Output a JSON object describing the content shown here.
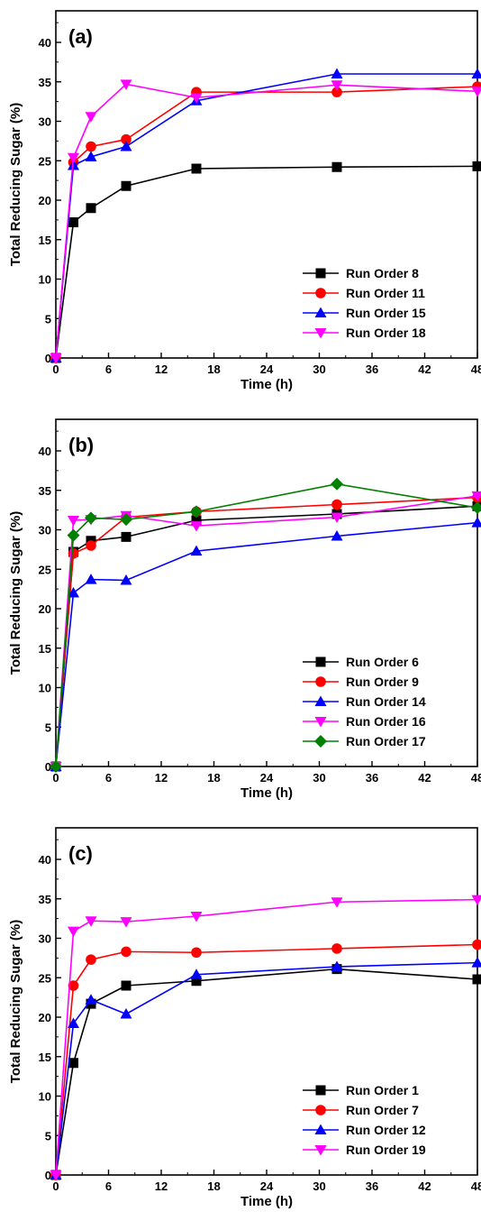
{
  "chart_data": [
    {
      "type": "line",
      "panel_label": "(a)",
      "xlabel": "Time (h)",
      "ylabel": "Total Reducing Sugar (%)",
      "xlim": [
        0,
        48
      ],
      "ylim": [
        0,
        44
      ],
      "xticks": [
        0,
        6,
        12,
        18,
        24,
        30,
        36,
        42,
        48
      ],
      "yticks": [
        0,
        5,
        10,
        15,
        20,
        25,
        30,
        35,
        40
      ],
      "legend_position": "bottom-right",
      "series": [
        {
          "name": "Run Order 8",
          "color": "#000000",
          "marker": "square",
          "x": [
            0,
            2,
            4,
            8,
            16,
            32,
            48
          ],
          "y": [
            0,
            17.2,
            19.0,
            21.8,
            24.0,
            24.2,
            24.3
          ]
        },
        {
          "name": "Run Order 11",
          "color": "#ff0000",
          "marker": "circle",
          "x": [
            0,
            2,
            4,
            8,
            16,
            32,
            48
          ],
          "y": [
            0,
            24.8,
            26.8,
            27.7,
            33.7,
            33.7,
            34.4
          ]
        },
        {
          "name": "Run Order 15",
          "color": "#0000ff",
          "marker": "triangle-up",
          "x": [
            0,
            2,
            4,
            8,
            16,
            32,
            48
          ],
          "y": [
            0,
            24.4,
            25.5,
            26.8,
            32.6,
            36.0,
            36.0
          ]
        },
        {
          "name": "Run Order 18",
          "color": "#ff00ff",
          "marker": "triangle-down",
          "x": [
            0,
            2,
            4,
            8,
            16,
            32,
            48
          ],
          "y": [
            0,
            25.4,
            30.6,
            34.7,
            33.0,
            34.6,
            33.8
          ]
        }
      ]
    },
    {
      "type": "line",
      "panel_label": "(b)",
      "xlabel": "Time (h)",
      "ylabel": "Total Reducing Sugar (%)",
      "xlim": [
        0,
        48
      ],
      "ylim": [
        0,
        44
      ],
      "xticks": [
        0,
        6,
        12,
        18,
        24,
        30,
        36,
        42,
        48
      ],
      "yticks": [
        0,
        5,
        10,
        15,
        20,
        25,
        30,
        35,
        40
      ],
      "legend_position": "bottom-right",
      "series": [
        {
          "name": "Run Order 6",
          "color": "#000000",
          "marker": "square",
          "x": [
            0,
            2,
            4,
            8,
            16,
            32,
            48
          ],
          "y": [
            0,
            27.2,
            28.6,
            29.1,
            31.2,
            32.0,
            33.0
          ]
        },
        {
          "name": "Run Order 9",
          "color": "#ff0000",
          "marker": "circle",
          "x": [
            0,
            2,
            4,
            8,
            16,
            32,
            48
          ],
          "y": [
            0,
            27.0,
            28.0,
            31.6,
            32.3,
            33.2,
            34.1
          ]
        },
        {
          "name": "Run Order 14",
          "color": "#0000ff",
          "marker": "triangle-up",
          "x": [
            0,
            2,
            4,
            8,
            16,
            32,
            48
          ],
          "y": [
            0,
            22.0,
            23.7,
            23.6,
            27.3,
            29.2,
            30.9
          ]
        },
        {
          "name": "Run Order 16",
          "color": "#ff00ff",
          "marker": "triangle-down",
          "x": [
            0,
            2,
            4,
            8,
            16,
            32,
            48
          ],
          "y": [
            0,
            31.2,
            31.3,
            31.8,
            30.5,
            31.6,
            34.3
          ]
        },
        {
          "name": "Run Order 17",
          "color": "#008000",
          "marker": "diamond",
          "x": [
            0,
            2,
            4,
            8,
            16,
            32,
            48
          ],
          "y": [
            0,
            29.3,
            31.5,
            31.3,
            32.3,
            35.8,
            32.8
          ]
        }
      ]
    },
    {
      "type": "line",
      "panel_label": "(c)",
      "xlabel": "Time (h)",
      "ylabel": "Total Reducing Sugar (%)",
      "xlim": [
        0,
        48
      ],
      "ylim": [
        0,
        44
      ],
      "xticks": [
        0,
        6,
        12,
        18,
        24,
        30,
        36,
        42,
        48
      ],
      "yticks": [
        0,
        5,
        10,
        15,
        20,
        25,
        30,
        35,
        40
      ],
      "legend_position": "bottom-right",
      "series": [
        {
          "name": "Run Order 1",
          "color": "#000000",
          "marker": "square",
          "x": [
            0,
            2,
            4,
            8,
            16,
            32,
            48
          ],
          "y": [
            0,
            14.2,
            21.7,
            24.0,
            24.6,
            26.1,
            24.8
          ]
        },
        {
          "name": "Run Order 7",
          "color": "#ff0000",
          "marker": "circle",
          "x": [
            0,
            2,
            4,
            8,
            16,
            32,
            48
          ],
          "y": [
            0,
            24.0,
            27.3,
            28.3,
            28.2,
            28.7,
            29.2
          ]
        },
        {
          "name": "Run Order 12",
          "color": "#0000ff",
          "marker": "triangle-up",
          "x": [
            0,
            2,
            4,
            8,
            16,
            32,
            48
          ],
          "y": [
            0,
            19.2,
            22.2,
            20.4,
            25.4,
            26.4,
            26.9
          ]
        },
        {
          "name": "Run Order 19",
          "color": "#ff00ff",
          "marker": "triangle-down",
          "x": [
            0,
            2,
            4,
            8,
            16,
            32,
            48
          ],
          "y": [
            0,
            30.9,
            32.2,
            32.1,
            32.8,
            34.6,
            34.9
          ]
        }
      ]
    }
  ]
}
